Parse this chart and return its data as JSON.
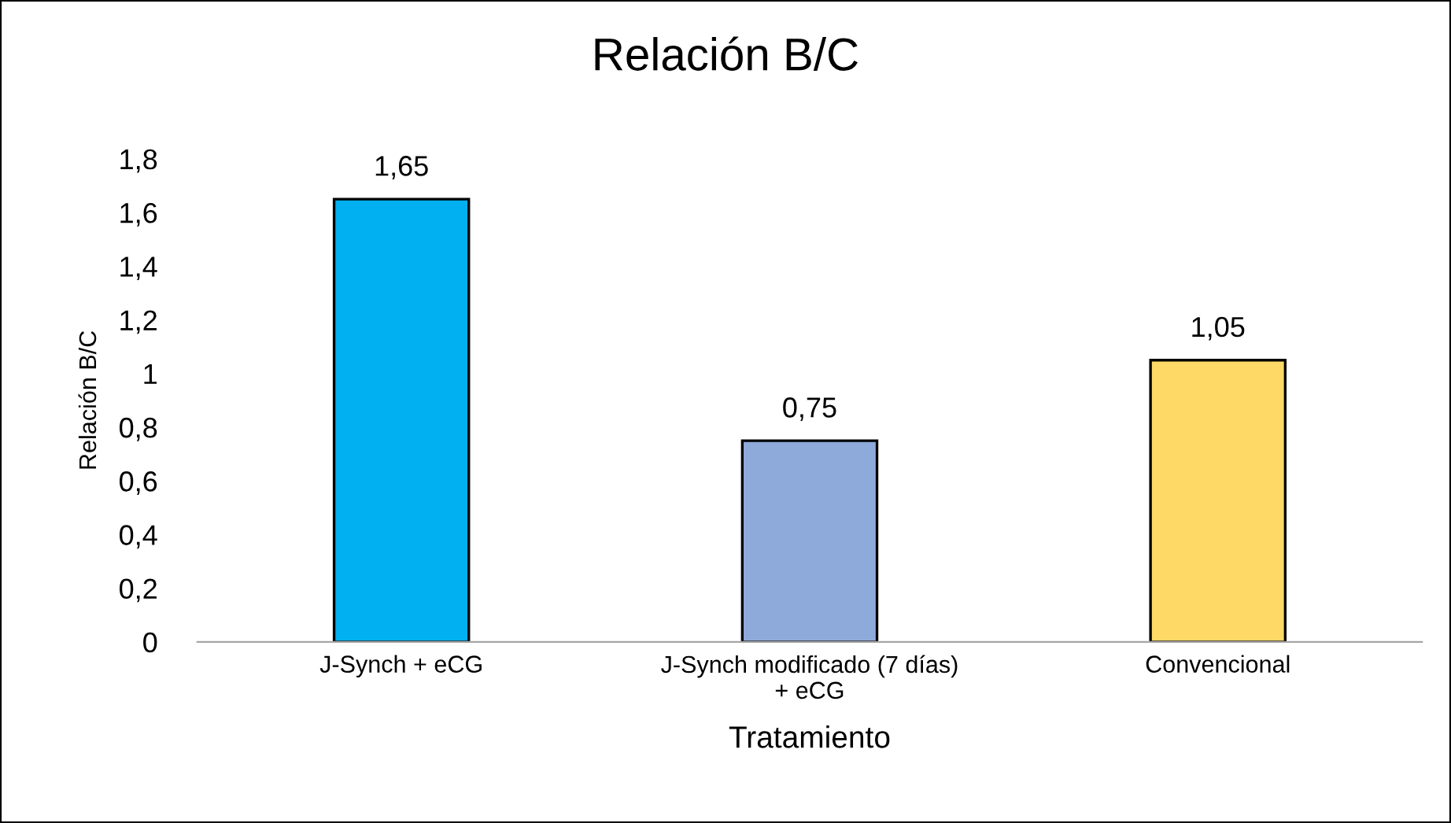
{
  "chart_data": {
    "type": "bar",
    "title": "Relación B/C",
    "xlabel": "Tratamiento",
    "ylabel": "Relación B/C",
    "categories": [
      "J-Synch + eCG",
      "J-Synch modificado (7 días)\n+ eCG",
      "Convencional"
    ],
    "values": [
      1.65,
      0.75,
      1.05
    ],
    "colors": [
      "#00b0f0",
      "#8eaadb",
      "#ffd966"
    ],
    "value_labels": [
      "1,65",
      "0,75",
      "1,05"
    ],
    "ylim": [
      0,
      1.8
    ],
    "yticks": [
      {
        "value": 0,
        "label": "0"
      },
      {
        "value": 0.2,
        "label": "0,2"
      },
      {
        "value": 0.4,
        "label": "0,4"
      },
      {
        "value": 0.6,
        "label": "0,6"
      },
      {
        "value": 0.8,
        "label": "0,8"
      },
      {
        "value": 1,
        "label": "1"
      },
      {
        "value": 1.2,
        "label": "1,2"
      },
      {
        "value": 1.4,
        "label": "1,4"
      },
      {
        "value": 1.6,
        "label": "1,6"
      },
      {
        "value": 1.8,
        "label": "1,8"
      }
    ],
    "grid": false,
    "legend": false
  }
}
